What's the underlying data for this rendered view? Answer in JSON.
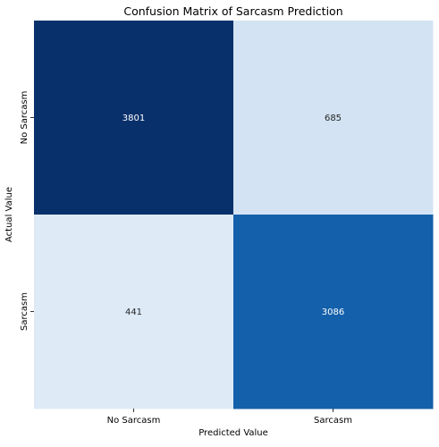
{
  "chart_data": {
    "type": "heatmap",
    "title": "Confusion Matrix of Sarcasm Prediction",
    "xlabel": "Predicted Value",
    "ylabel": "Actual Value",
    "x_categories": [
      "No Sarcasm",
      "Sarcasm"
    ],
    "y_categories": [
      "No Sarcasm",
      "Sarcasm"
    ],
    "values": [
      [
        3801,
        685
      ],
      [
        441,
        3086
      ]
    ],
    "colormap": "Blues",
    "colorbar": false,
    "cell_colors": [
      [
        "#08306b",
        "#d3e3f3"
      ],
      [
        "#deebf7",
        "#1460aa"
      ]
    ],
    "annotation_colors": [
      [
        "#ffffff",
        "#262626"
      ],
      [
        "#262626",
        "#ffffff"
      ]
    ]
  }
}
